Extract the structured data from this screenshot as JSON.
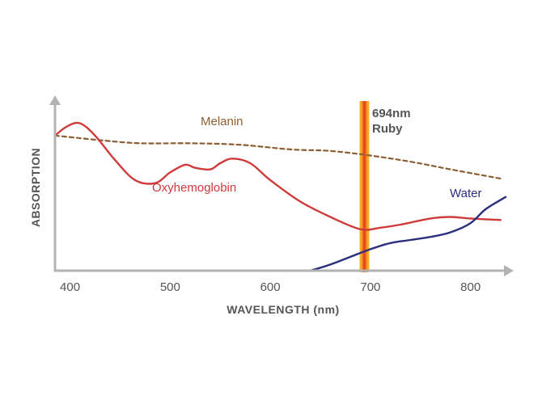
{
  "chart_data": {
    "type": "line",
    "xlabel": "WAVELENGTH (nm)",
    "ylabel": "ABSORPTION",
    "xlim": [
      385,
      835
    ],
    "ylim": [
      0,
      100
    ],
    "x_ticks": [
      "400",
      "500",
      "600",
      "700",
      "800"
    ],
    "x_tick_values": [
      400,
      500,
      600,
      700,
      800
    ],
    "y_ticks_shown": false,
    "grid": false,
    "series": [
      {
        "name": "Melanin",
        "color": "#8b5e34",
        "style": "dashed",
        "x": [
          385,
          400,
          430,
          470,
          520,
          570,
          620,
          660,
          700,
          740,
          780,
          830
        ],
        "y": [
          88,
          87,
          85,
          83,
          83,
          82,
          79,
          78,
          75,
          71,
          66,
          60
        ]
      },
      {
        "name": "Oxyhemoglobin",
        "color": "#cf3a3a",
        "style": "solid",
        "x": [
          385,
          397,
          410,
          425,
          445,
          465,
          485,
          500,
          515,
          525,
          540,
          550,
          562,
          580,
          600,
          630,
          660,
          690,
          710,
          730,
          760,
          780,
          800,
          830
        ],
        "y": [
          88,
          94,
          96,
          88,
          72,
          59,
          57,
          64,
          69,
          67,
          66,
          70,
          73,
          70,
          59,
          45,
          35,
          27,
          28,
          30,
          34,
          35,
          34,
          33
        ]
      },
      {
        "name": "Water",
        "color": "#2b2f7d",
        "style": "solid",
        "x": [
          640,
          660,
          680,
          700,
          720,
          740,
          760,
          780,
          800,
          815,
          835
        ],
        "y": [
          0,
          4,
          9,
          14,
          18,
          20,
          22,
          25,
          31,
          40,
          48
        ]
      }
    ],
    "annotations": [
      {
        "text_line1": "694nm",
        "text_line2": "Ruby",
        "x": 694,
        "color": "#f08a1c"
      }
    ]
  }
}
